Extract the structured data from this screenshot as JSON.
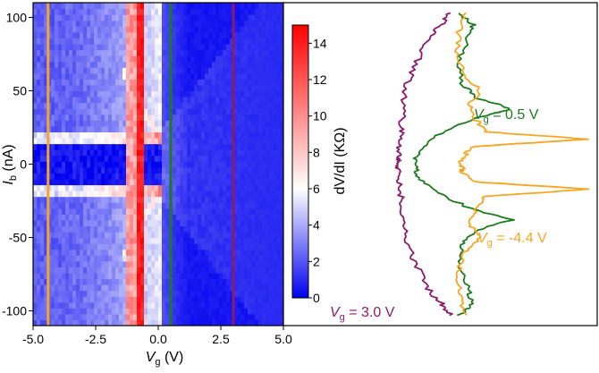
{
  "chart_data": [
    {
      "type": "heatmap",
      "x": {
        "label_main": "V",
        "label_sub": "g",
        "label_unit": " (V)",
        "range": [
          -5,
          5
        ],
        "ticks": [
          -5,
          -2.5,
          0,
          2.5,
          5
        ],
        "tick_labels": [
          "-5.0",
          "-2.5",
          "0.0",
          "2.5",
          "5.0"
        ]
      },
      "y": {
        "label_main": "I",
        "label_sub": "b",
        "label_unit": " (nA)",
        "range": [
          -110,
          110
        ],
        "ticks": [
          -100,
          -50,
          0,
          50,
          100
        ],
        "tick_labels": [
          "-100",
          "-50",
          "0",
          "50",
          "100"
        ]
      },
      "colorbar": {
        "label": "dV/dI (KΩ)",
        "range": [
          0,
          15
        ],
        "ticks": [
          0,
          2,
          4,
          6,
          8,
          10,
          12,
          14
        ],
        "tick_labels": [
          "0",
          "2",
          "4",
          "6",
          "8",
          "10",
          "12",
          "14"
        ],
        "colors": [
          "#0000f0",
          "#ffffff",
          "#ff0000"
        ]
      },
      "features": {
        "resistive_peak_vg": [
          -0.9,
          -0.55
        ],
        "superconducting_gap_half_width_nA": 18,
        "coherence_boundary_vg": 0.2
      },
      "markers": [
        {
          "vg": -4.4,
          "color": "#f5a623"
        },
        {
          "vg": 0.5,
          "color": "#1e7a1e"
        },
        {
          "vg": 3.0,
          "color": "#8b1a6b"
        }
      ]
    },
    {
      "type": "line",
      "note_axis": "shares I_b axis with heatmap; dV/dI increases to the right",
      "series": [
        {
          "color": "#8b1a6b",
          "y": [
            -103,
            -95,
            -85,
            -70,
            -55,
            -40,
            -25,
            -15,
            -5,
            0,
            5,
            15,
            25,
            40,
            55,
            70,
            85,
            95,
            103
          ],
          "values": [
            2.5,
            2.0,
            1.2,
            0.6,
            0.0,
            -0.2,
            -0.3,
            -0.4,
            -0.5,
            -0.5,
            -0.5,
            -0.4,
            -0.3,
            -0.2,
            0.0,
            0.6,
            1.2,
            2.0,
            2.5
          ]
        },
        {
          "color": "#1e7a1e",
          "y": [
            -103,
            -95,
            -85,
            -70,
            -55,
            -45,
            -38,
            -30,
            -18,
            -8,
            0,
            8,
            18,
            30,
            38,
            45,
            55,
            70,
            85,
            95,
            103
          ],
          "values": [
            3.0,
            3.8,
            3.5,
            3.0,
            3.2,
            4.0,
            6.0,
            3.6,
            1.5,
            0.6,
            0.5,
            0.6,
            1.5,
            3.6,
            6.0,
            4.0,
            3.2,
            3.0,
            3.5,
            3.8,
            3.0
          ]
        },
        {
          "color": "#f5a623",
          "y": [
            -103,
            -90,
            -75,
            -60,
            -50,
            -40,
            -30,
            -22,
            -17,
            -12,
            -5,
            0,
            5,
            12,
            17,
            22,
            30,
            40,
            50,
            60,
            75,
            90,
            103
          ],
          "values": [
            3.4,
            3.0,
            2.9,
            3.4,
            4.2,
            3.6,
            4.0,
            4.5,
            10.4,
            3.8,
            3.2,
            3.1,
            3.2,
            3.8,
            10.4,
            4.5,
            4.0,
            3.6,
            4.2,
            3.4,
            2.9,
            3.0,
            3.4
          ]
        }
      ],
      "annotations": [
        {
          "main": "V",
          "sub": "g",
          "rest": " = 0.5 V",
          "color": "#1e7a1e"
        },
        {
          "main": "V",
          "sub": "g",
          "rest": " = -4.4 V",
          "color": "#f5a623"
        },
        {
          "main": "V",
          "sub": "g",
          "rest": " = 3.0 V",
          "color": "#8b1a6b"
        }
      ]
    }
  ]
}
